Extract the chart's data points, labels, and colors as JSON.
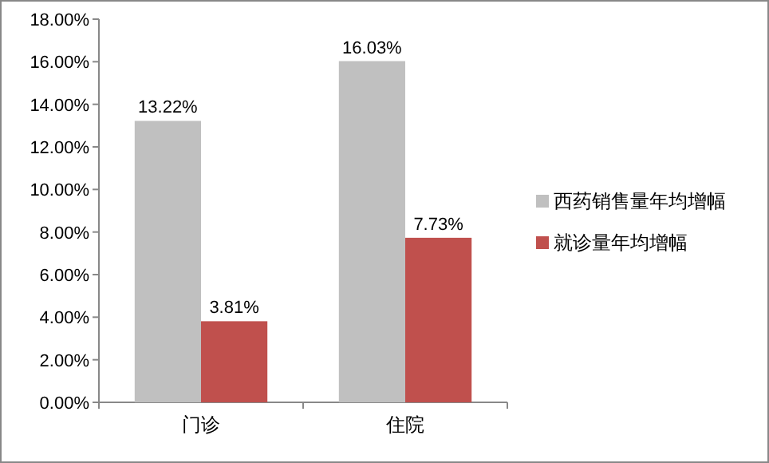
{
  "chart_data": {
    "type": "bar",
    "categories": [
      "门诊",
      "住院"
    ],
    "series": [
      {
        "name": "西药销售量年均增幅",
        "color": "#c0c0c0",
        "values": [
          13.22,
          16.03
        ],
        "value_labels": [
          "13.22%",
          "16.03%"
        ]
      },
      {
        "name": "就诊量年均增幅",
        "color": "#c0504d",
        "values": [
          3.81,
          7.73
        ],
        "value_labels": [
          "3.81%",
          "7.73%"
        ]
      }
    ],
    "ylim": [
      0,
      18
    ],
    "yticks": [
      {
        "value": 0,
        "label": "0.00%"
      },
      {
        "value": 2,
        "label": "2.00%"
      },
      {
        "value": 4,
        "label": "4.00%"
      },
      {
        "value": 6,
        "label": "6.00%"
      },
      {
        "value": 8,
        "label": "8.00%"
      },
      {
        "value": 10,
        "label": "10.00%"
      },
      {
        "value": 12,
        "label": "12.00%"
      },
      {
        "value": 14,
        "label": "14.00%"
      },
      {
        "value": 16,
        "label": "16.00%"
      },
      {
        "value": 18,
        "label": "18.00%"
      }
    ],
    "grid": false,
    "legend": "right"
  }
}
